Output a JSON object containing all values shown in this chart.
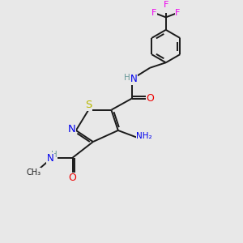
{
  "bg_color": "#e8e8e8",
  "bond_color": "#1a1a1a",
  "bond_width": 1.4,
  "colors": {
    "S": "#b8b800",
    "N": "#0000ee",
    "O": "#ee0000",
    "F": "#ee00ee",
    "C": "#1a1a1a",
    "H": "#6a9a9a"
  },
  "font_size": 8.0
}
